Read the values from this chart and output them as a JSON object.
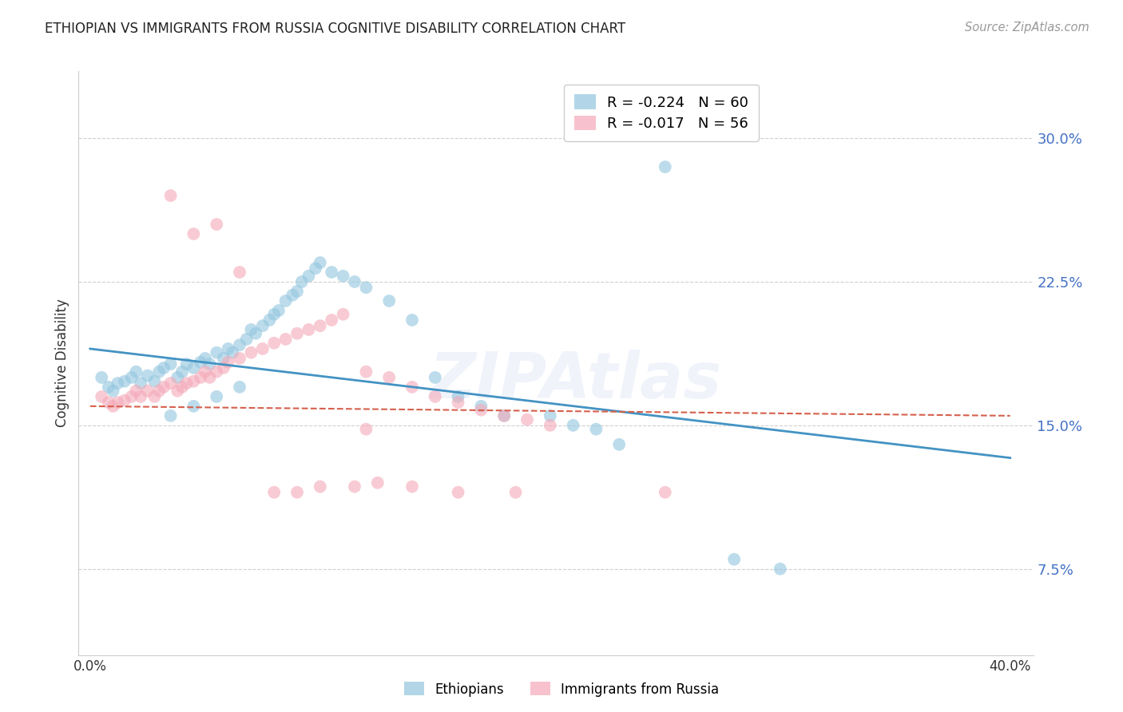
{
  "title": "ETHIOPIAN VS IMMIGRANTS FROM RUSSIA COGNITIVE DISABILITY CORRELATION CHART",
  "source": "Source: ZipAtlas.com",
  "ylabel": "Cognitive Disability",
  "ytick_labels": [
    "7.5%",
    "15.0%",
    "22.5%",
    "30.0%"
  ],
  "ytick_values": [
    0.075,
    0.15,
    0.225,
    0.3
  ],
  "xtick_values": [
    0.0,
    0.1,
    0.2,
    0.3,
    0.4
  ],
  "xtick_labels": [
    "0.0%",
    "",
    "",
    "",
    "40.0%"
  ],
  "xlim": [
    -0.005,
    0.41
  ],
  "ylim": [
    0.03,
    0.335
  ],
  "legend_label1": "Ethiopians",
  "legend_label2": "Immigrants from Russia",
  "blue_color": "#92c5de",
  "pink_color": "#f4a9b8",
  "trendline_blue": "#4393c3",
  "trendline_pink": "#d6604d",
  "blue_scatter_x": [
    0.005,
    0.008,
    0.01,
    0.012,
    0.015,
    0.018,
    0.02,
    0.022,
    0.025,
    0.028,
    0.03,
    0.032,
    0.035,
    0.038,
    0.04,
    0.042,
    0.045,
    0.048,
    0.05,
    0.052,
    0.055,
    0.058,
    0.06,
    0.062,
    0.065,
    0.068,
    0.07,
    0.072,
    0.075,
    0.078,
    0.08,
    0.082,
    0.085,
    0.088,
    0.09,
    0.092,
    0.095,
    0.098,
    0.1,
    0.105,
    0.11,
    0.115,
    0.12,
    0.13,
    0.14,
    0.15,
    0.16,
    0.17,
    0.18,
    0.2,
    0.21,
    0.22,
    0.25,
    0.28,
    0.035,
    0.045,
    0.055,
    0.065,
    0.3,
    0.23
  ],
  "blue_scatter_y": [
    0.175,
    0.17,
    0.168,
    0.172,
    0.173,
    0.175,
    0.178,
    0.172,
    0.176,
    0.173,
    0.178,
    0.18,
    0.182,
    0.175,
    0.178,
    0.182,
    0.18,
    0.183,
    0.185,
    0.182,
    0.188,
    0.185,
    0.19,
    0.188,
    0.192,
    0.195,
    0.2,
    0.198,
    0.202,
    0.205,
    0.208,
    0.21,
    0.215,
    0.218,
    0.22,
    0.225,
    0.228,
    0.232,
    0.235,
    0.23,
    0.228,
    0.225,
    0.222,
    0.215,
    0.205,
    0.175,
    0.165,
    0.16,
    0.155,
    0.155,
    0.15,
    0.148,
    0.285,
    0.08,
    0.155,
    0.16,
    0.165,
    0.17,
    0.075,
    0.14
  ],
  "pink_scatter_x": [
    0.005,
    0.008,
    0.01,
    0.012,
    0.015,
    0.018,
    0.02,
    0.022,
    0.025,
    0.028,
    0.03,
    0.032,
    0.035,
    0.038,
    0.04,
    0.042,
    0.045,
    0.048,
    0.05,
    0.052,
    0.055,
    0.058,
    0.06,
    0.065,
    0.07,
    0.075,
    0.08,
    0.085,
    0.09,
    0.095,
    0.1,
    0.105,
    0.11,
    0.12,
    0.13,
    0.14,
    0.15,
    0.16,
    0.17,
    0.18,
    0.19,
    0.2,
    0.12,
    0.14,
    0.16,
    0.185,
    0.25,
    0.035,
    0.045,
    0.055,
    0.065,
    0.08,
    0.09,
    0.1,
    0.115,
    0.125
  ],
  "pink_scatter_y": [
    0.165,
    0.162,
    0.16,
    0.162,
    0.163,
    0.165,
    0.168,
    0.165,
    0.168,
    0.165,
    0.168,
    0.17,
    0.172,
    0.168,
    0.17,
    0.172,
    0.173,
    0.175,
    0.178,
    0.175,
    0.178,
    0.18,
    0.183,
    0.185,
    0.188,
    0.19,
    0.193,
    0.195,
    0.198,
    0.2,
    0.202,
    0.205,
    0.208,
    0.178,
    0.175,
    0.17,
    0.165,
    0.162,
    0.158,
    0.155,
    0.153,
    0.15,
    0.148,
    0.118,
    0.115,
    0.115,
    0.115,
    0.27,
    0.25,
    0.255,
    0.23,
    0.115,
    0.115,
    0.118,
    0.118,
    0.12
  ],
  "blue_R": -0.224,
  "blue_N": 60,
  "pink_R": -0.017,
  "pink_N": 56,
  "blue_trend_x0": 0.0,
  "blue_trend_y0": 0.19,
  "blue_trend_x1": 0.4,
  "blue_trend_y1": 0.133,
  "pink_trend_x0": 0.0,
  "pink_trend_y0": 0.16,
  "pink_trend_x1": 0.4,
  "pink_trend_y1": 0.155,
  "watermark": "ZIPAtlas",
  "background_color": "#ffffff",
  "grid_color": "#d0d0d0"
}
